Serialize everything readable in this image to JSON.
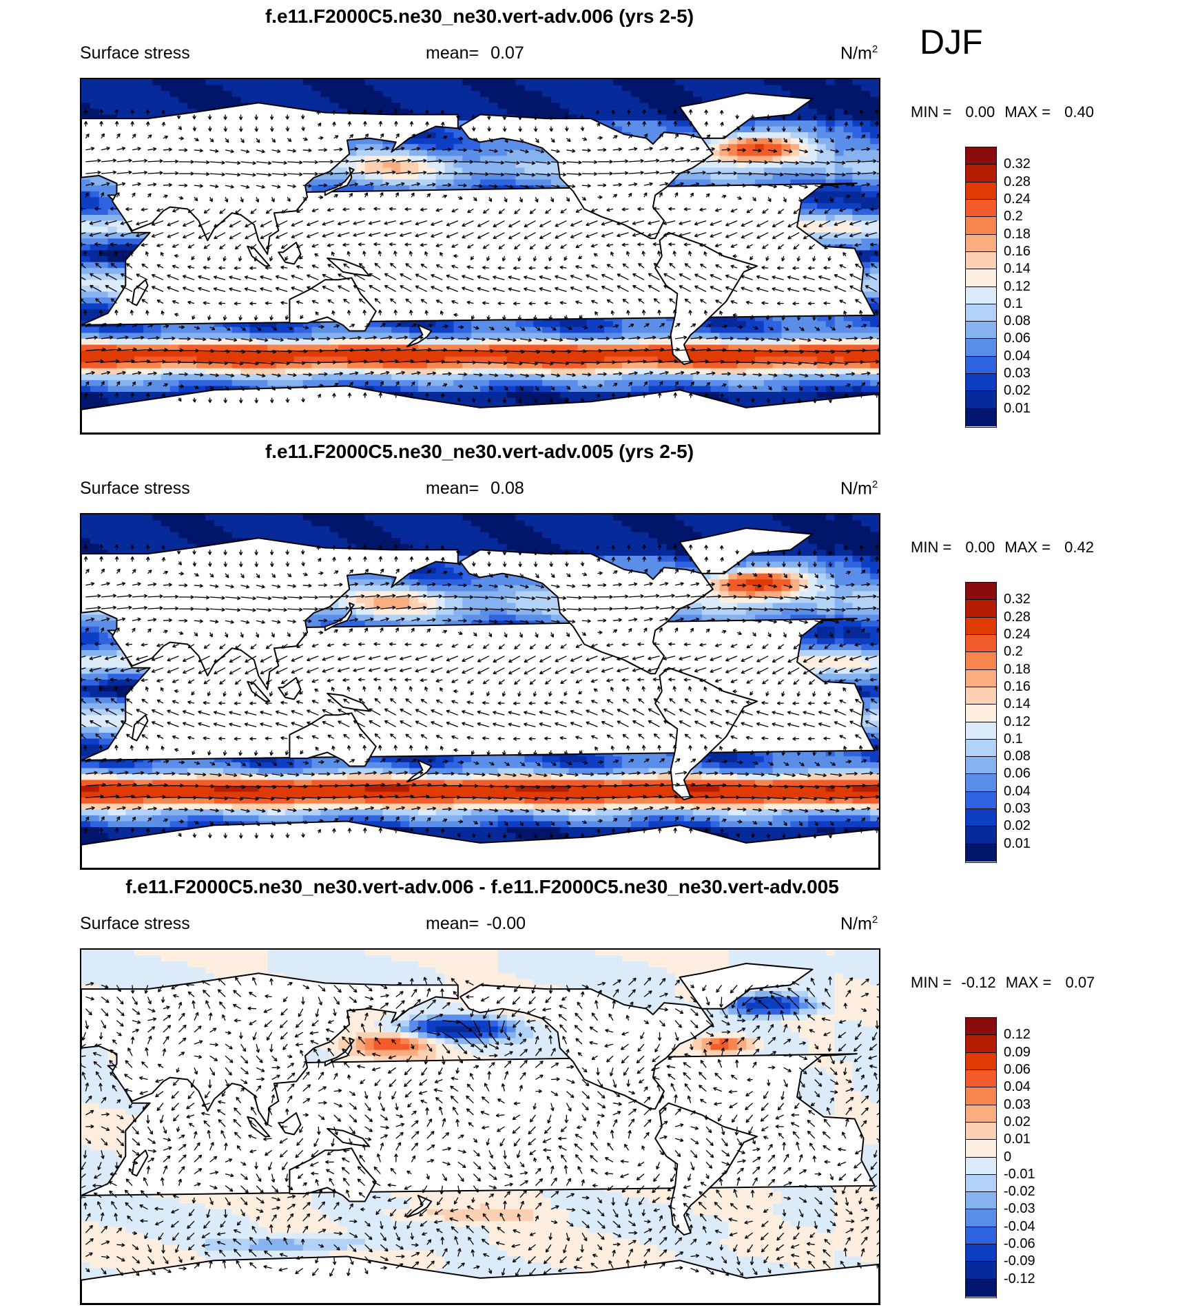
{
  "season": "DJF",
  "panels": [
    {
      "title": "f.e11.F2000C5.ne30_ne30.vert-adv.006 (yrs 2-5)",
      "variable": "Surface stress",
      "mean_label": "mean=",
      "mean_value": "0.07",
      "units": "N/m",
      "units_exp": "2",
      "min_label": "MIN =",
      "min_value": "0.00",
      "max_label": "MAX =",
      "max_value": "0.40",
      "colorbar": {
        "labels": [
          "0.32",
          "0.28",
          "0.24",
          "0.2",
          "0.18",
          "0.16",
          "0.14",
          "0.12",
          "0.1",
          "0.08",
          "0.06",
          "0.04",
          "0.03",
          "0.02",
          "0.01"
        ],
        "colors": [
          "#8a0c0c",
          "#b51d02",
          "#e03b04",
          "#f25c2a",
          "#f7864e",
          "#faad80",
          "#fcd1b3",
          "#fdeee0",
          "#dcebfa",
          "#b3d2f7",
          "#86b2f0",
          "#5b8ee8",
          "#2f63e0",
          "#0d3ec4",
          "#062a99",
          "#01166a"
        ]
      },
      "chart_data": {
        "type": "heatmap",
        "projection": "Equidistant cylindrical, centered on Pacific",
        "field": "Surface stress magnitude with stress vectors",
        "units": "N/m2",
        "mean": 0.07,
        "min": 0.0,
        "max": 0.4,
        "levels": [
          0.01,
          0.02,
          0.03,
          0.04,
          0.06,
          0.08,
          0.1,
          0.12,
          0.14,
          0.16,
          0.18,
          0.2,
          0.24,
          0.28,
          0.32
        ]
      }
    },
    {
      "title": "f.e11.F2000C5.ne30_ne30.vert-adv.005 (yrs 2-5)",
      "variable": "Surface stress",
      "mean_label": "mean=",
      "mean_value": "0.08",
      "units": "N/m",
      "units_exp": "2",
      "min_label": "MIN =",
      "min_value": "0.00",
      "max_label": "MAX =",
      "max_value": "0.42",
      "colorbar": {
        "labels": [
          "0.32",
          "0.28",
          "0.24",
          "0.2",
          "0.18",
          "0.16",
          "0.14",
          "0.12",
          "0.1",
          "0.08",
          "0.06",
          "0.04",
          "0.03",
          "0.02",
          "0.01"
        ],
        "colors": [
          "#8a0c0c",
          "#b51d02",
          "#e03b04",
          "#f25c2a",
          "#f7864e",
          "#faad80",
          "#fcd1b3",
          "#fdeee0",
          "#dcebfa",
          "#b3d2f7",
          "#86b2f0",
          "#5b8ee8",
          "#2f63e0",
          "#0d3ec4",
          "#062a99",
          "#01166a"
        ]
      },
      "chart_data": {
        "type": "heatmap",
        "projection": "Equidistant cylindrical, centered on Pacific",
        "field": "Surface stress magnitude with stress vectors",
        "units": "N/m2",
        "mean": 0.08,
        "min": 0.0,
        "max": 0.42,
        "levels": [
          0.01,
          0.02,
          0.03,
          0.04,
          0.06,
          0.08,
          0.1,
          0.12,
          0.14,
          0.16,
          0.18,
          0.2,
          0.24,
          0.28,
          0.32
        ]
      }
    },
    {
      "title": "f.e11.F2000C5.ne30_ne30.vert-adv.006 - f.e11.F2000C5.ne30_ne30.vert-adv.005",
      "variable": "Surface stress",
      "mean_label": "mean=",
      "mean_value": "-0.00",
      "units": "N/m",
      "units_exp": "2",
      "min_label": "MIN =",
      "min_value": "-0.12",
      "max_label": "MAX =",
      "max_value": "0.07",
      "colorbar": {
        "labels": [
          "0.12",
          "0.09",
          "0.06",
          "0.04",
          "0.03",
          "0.02",
          "0.01",
          "0",
          "-0.01",
          "-0.02",
          "-0.03",
          "-0.04",
          "-0.06",
          "-0.09",
          "-0.12"
        ],
        "colors": [
          "#8a0c0c",
          "#b51d02",
          "#e03b04",
          "#f25c2a",
          "#f7864e",
          "#faad80",
          "#fcd1b3",
          "#fdeee0",
          "#dcebfa",
          "#b3d2f7",
          "#86b2f0",
          "#5b8ee8",
          "#2f63e0",
          "#0d3ec4",
          "#062a99",
          "#01166a"
        ]
      },
      "chart_data": {
        "type": "heatmap",
        "projection": "Equidistant cylindrical, centered on Pacific",
        "field": "Surface stress difference with stress vectors",
        "units": "N/m2",
        "mean": -0.0,
        "min": -0.12,
        "max": 0.07,
        "levels": [
          -0.12,
          -0.09,
          -0.06,
          -0.04,
          -0.03,
          -0.02,
          -0.01,
          0,
          0.01,
          0.02,
          0.03,
          0.04,
          0.06,
          0.09,
          0.12
        ]
      }
    }
  ]
}
